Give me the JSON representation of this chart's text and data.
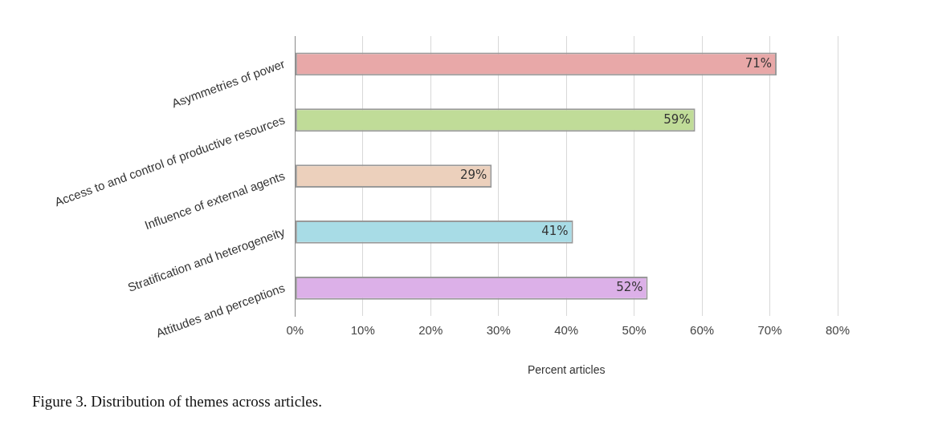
{
  "chart_data": {
    "type": "bar",
    "orientation": "horizontal",
    "xlabel": "Percent articles",
    "categories": [
      "Asymmetries of power",
      "Access to and control of productive resources",
      "Influence of external agents",
      "Stratification and heterogeneity",
      "Attitudes and perceptions"
    ],
    "values": [
      71,
      59,
      29,
      41,
      52
    ],
    "colors": [
      "#e8a8a8",
      "#c0dc98",
      "#ecd0bc",
      "#a8dce6",
      "#dcb0e8"
    ],
    "value_labels": [
      "71%",
      "59%",
      "29%",
      "41%",
      "52%"
    ],
    "xlim": [
      0,
      80
    ],
    "xticks": [
      {
        "value": 0,
        "label": "0%"
      },
      {
        "value": 10,
        "label": "10%"
      },
      {
        "value": 20,
        "label": "20%"
      },
      {
        "value": 30,
        "label": "30%"
      },
      {
        "value": 40,
        "label": "40%"
      },
      {
        "value": 50,
        "label": "50%"
      },
      {
        "value": 60,
        "label": "60%"
      },
      {
        "value": 70,
        "label": "70%"
      },
      {
        "value": 80,
        "label": "80%"
      }
    ],
    "grid": "x",
    "legend": false,
    "annotations": [
      "Figure 3. Distribution of themes across articles."
    ]
  }
}
